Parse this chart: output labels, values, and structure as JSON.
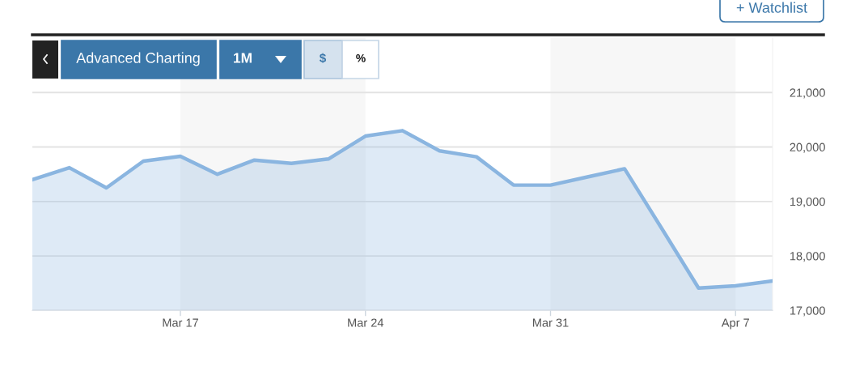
{
  "chart_data": {
    "type": "area",
    "categories": [
      null,
      null,
      null,
      null,
      "Mar 17",
      null,
      null,
      null,
      null,
      "Mar 24",
      null,
      null,
      null,
      null,
      "Mar 31",
      null,
      null,
      null,
      null,
      "Apr 7",
      null
    ],
    "series": [
      {
        "color": "#8ab5e0",
        "values": [
          19400,
          19620,
          19250,
          19740,
          19830,
          19500,
          19760,
          19700,
          19780,
          20200,
          20300,
          19930,
          19820,
          19300,
          19300,
          19450,
          19600,
          18510,
          17410,
          17450,
          17540
        ]
      }
    ],
    "ylim": [
      17000,
      22000
    ],
    "yticks": [
      {
        "value": 17000,
        "label": "17,000"
      },
      {
        "value": 18000,
        "label": "18,000"
      },
      {
        "value": 19000,
        "label": "19,000"
      },
      {
        "value": 20000,
        "label": "20,000"
      },
      {
        "value": 21000,
        "label": "21,000"
      }
    ],
    "grid": "y",
    "bands": [
      {
        "axis": "x",
        "from": "Mar 17",
        "to": "Mar 24",
        "color": "#f7f7f7"
      },
      {
        "axis": "x",
        "from": "Mar 31",
        "to": "Apr 7",
        "color": "#f7f7f7"
      }
    ],
    "annotations": [
      "Advanced Charting",
      "1M",
      "$",
      "%",
      "+ Watchlist"
    ]
  }
}
